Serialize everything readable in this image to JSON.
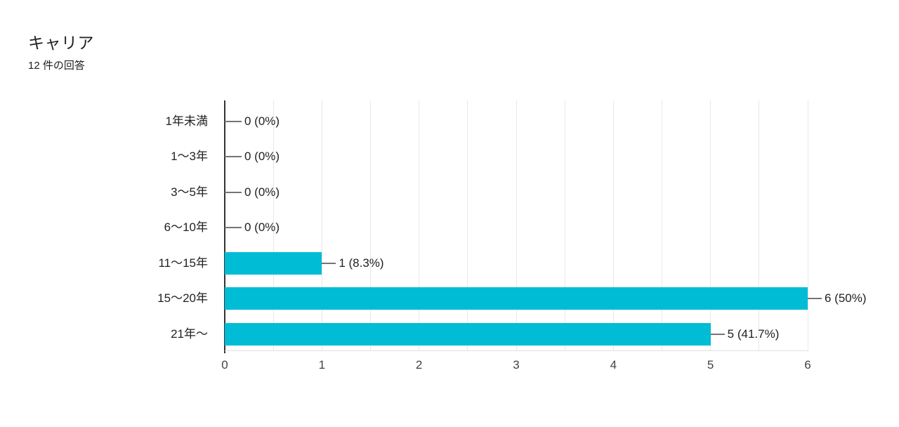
{
  "page": {
    "title": "キャリア",
    "subtitle": "12 件の回答"
  },
  "chart_data": {
    "type": "bar",
    "orientation": "horizontal",
    "title": "キャリア",
    "subtitle": "12 件の回答",
    "categories": [
      "1年未満",
      "1〜3年",
      "3〜5年",
      "6〜10年",
      "11〜15年",
      "15〜20年",
      "21年〜"
    ],
    "values": [
      0,
      0,
      0,
      0,
      1,
      6,
      5
    ],
    "value_labels": [
      "0 (0%)",
      "0 (0%)",
      "0 (0%)",
      "0 (0%)",
      "1 (8.3%)",
      "6 (50%)",
      "5 (41.7%)"
    ],
    "x_ticks": [
      "0",
      "1",
      "2",
      "3",
      "4",
      "5",
      "6"
    ],
    "xlim": [
      0,
      6
    ],
    "grid_step": 0.5,
    "grid_on": true,
    "legend": "none",
    "colors": {
      "bar": "#00bcd4",
      "axis": "#333333",
      "gridline": "#e8e8e8",
      "leader": "#757575",
      "label_text": "#212121",
      "tick_text": "#424242"
    }
  }
}
